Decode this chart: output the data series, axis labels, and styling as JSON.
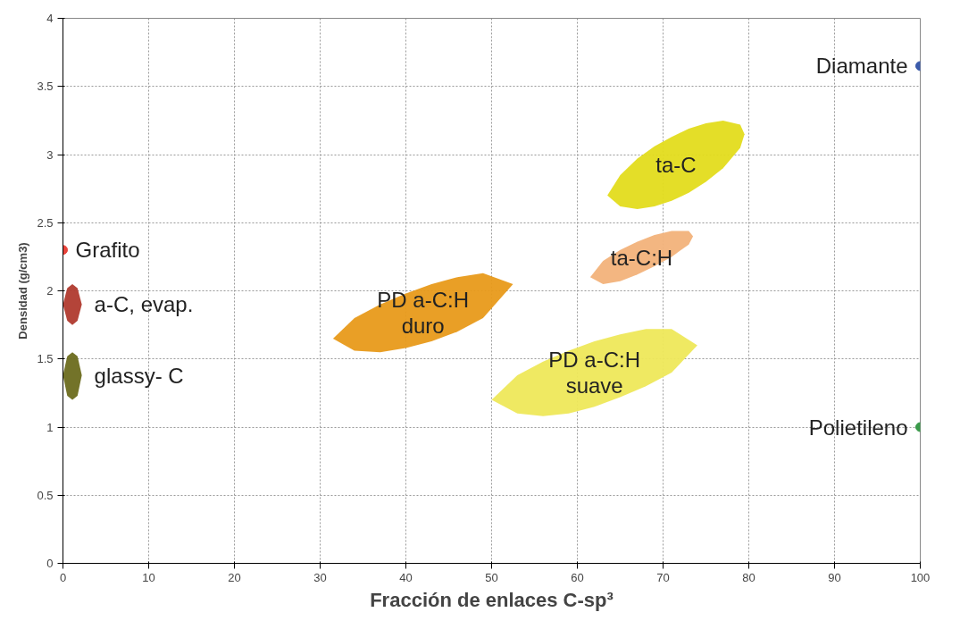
{
  "chart_data": {
    "type": "scatter",
    "xlabel": "Fracción de enlaces C-sp³",
    "ylabel": "Densidad (g/cm3)",
    "xlim": [
      0,
      100
    ],
    "ylim": [
      0,
      4
    ],
    "xticks": [
      0,
      10,
      20,
      30,
      40,
      50,
      60,
      70,
      80,
      90,
      100
    ],
    "yticks": [
      0,
      0.5,
      1,
      1.5,
      2,
      2.5,
      3,
      3.5,
      4
    ],
    "grid": true,
    "series": [
      {
        "name": "ta-C",
        "type": "area",
        "color": "#e3dc1c",
        "x": [
          63.5,
          65,
          67,
          69,
          71,
          73,
          75,
          77,
          79,
          79.5,
          79,
          77,
          75,
          73,
          71,
          69,
          67,
          65
        ],
        "values": [
          2.7,
          2.85,
          2.97,
          3.06,
          3.13,
          3.19,
          3.23,
          3.25,
          3.22,
          3.15,
          3.05,
          2.9,
          2.8,
          2.72,
          2.66,
          2.62,
          2.6,
          2.62
        ]
      },
      {
        "name": "ta-C:H",
        "type": "area",
        "color": "#f2b27a",
        "x": [
          61.5,
          63,
          65,
          67,
          69,
          71,
          73,
          73.5,
          73,
          71,
          69,
          67,
          65,
          63
        ],
        "values": [
          2.1,
          2.22,
          2.3,
          2.36,
          2.41,
          2.44,
          2.44,
          2.4,
          2.34,
          2.25,
          2.18,
          2.12,
          2.07,
          2.05
        ]
      },
      {
        "name": "PD a-C:H\nduro",
        "type": "area",
        "color": "#e89a1a",
        "x": [
          31.5,
          34,
          37,
          40,
          43,
          46,
          49,
          52.5,
          49,
          46,
          43,
          40,
          37,
          34
        ],
        "values": [
          1.65,
          1.8,
          1.9,
          1.98,
          2.05,
          2.1,
          2.13,
          2.05,
          1.8,
          1.7,
          1.63,
          1.58,
          1.55,
          1.56
        ]
      },
      {
        "name": "PD a-C:H\nsuave",
        "type": "area",
        "color": "#eee85a",
        "x": [
          50,
          53,
          56,
          59,
          62,
          65,
          68,
          71,
          74,
          71,
          68,
          65,
          62,
          59,
          56,
          53
        ],
        "values": [
          1.2,
          1.38,
          1.48,
          1.56,
          1.63,
          1.68,
          1.72,
          1.72,
          1.6,
          1.4,
          1.3,
          1.22,
          1.15,
          1.1,
          1.08,
          1.1
        ]
      },
      {
        "name": "a-C, evap.",
        "type": "area",
        "color": "#b03a2e",
        "x": [
          0,
          0.5,
          1.1,
          1.7,
          2.2,
          1.7,
          1.1,
          0.5
        ],
        "values": [
          1.9,
          2.02,
          2.05,
          2.02,
          1.9,
          1.78,
          1.75,
          1.78
        ]
      },
      {
        "name": "glassy- C",
        "type": "area",
        "color": "#6b6b1e",
        "x": [
          0,
          0.5,
          1.1,
          1.7,
          2.2,
          1.7,
          1.1,
          0.5
        ],
        "values": [
          1.38,
          1.52,
          1.55,
          1.52,
          1.38,
          1.23,
          1.2,
          1.23
        ]
      },
      {
        "name": "Grafito",
        "color": "#e8433b",
        "x": [
          0
        ],
        "values": [
          2.3
        ]
      },
      {
        "name": "Diamante",
        "color": "#3b5bab",
        "x": [
          100
        ],
        "values": [
          3.65
        ]
      },
      {
        "name": "Polietileno",
        "color": "#3a9a4a",
        "x": [
          100
        ],
        "values": [
          1.0
        ]
      }
    ]
  }
}
